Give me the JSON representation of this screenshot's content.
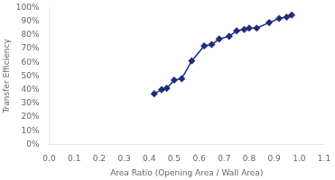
{
  "chart_data": {
    "type": "line",
    "x": [
      0.42,
      0.45,
      0.47,
      0.5,
      0.53,
      0.57,
      0.62,
      0.65,
      0.68,
      0.72,
      0.75,
      0.78,
      0.8,
      0.83,
      0.88,
      0.92,
      0.95,
      0.97
    ],
    "values": [
      0.37,
      0.4,
      0.41,
      0.47,
      0.48,
      0.61,
      0.72,
      0.73,
      0.77,
      0.79,
      0.83,
      0.84,
      0.85,
      0.85,
      0.89,
      0.92,
      0.93,
      0.945
    ],
    "color": "#1f2d7e",
    "marker": "diamond",
    "line_style": "solid",
    "xlabel": "Area Ratio (Opening Area / Wall Area)",
    "ylabel": "Transfer Efficiency",
    "xlim": [
      0.0,
      1.1
    ],
    "ylim": [
      0.0,
      1.0
    ],
    "xticks": [
      {
        "value": 0,
        "label": "0.0"
      },
      0.1,
      0.2,
      0.3,
      0.4,
      0.5,
      0.6,
      0.7,
      0.8,
      0.9,
      {
        "value": 1,
        "label": "1.0"
      },
      1.1
    ],
    "yticks": [
      {
        "value": 0,
        "label": "0%"
      },
      {
        "value": 0.1,
        "label": "10%"
      },
      {
        "value": 0.2,
        "label": "20%"
      },
      {
        "value": 0.3,
        "label": "30%"
      },
      {
        "value": 0.4,
        "label": "40%"
      },
      {
        "value": 0.5,
        "label": "50%"
      },
      {
        "value": 0.6,
        "label": "60%"
      },
      {
        "value": 0.7,
        "label": "70%"
      },
      {
        "value": 0.8,
        "label": "80%"
      },
      {
        "value": 0.9,
        "label": "90%"
      },
      {
        "value": 1,
        "label": "100%"
      }
    ],
    "grid": false
  }
}
